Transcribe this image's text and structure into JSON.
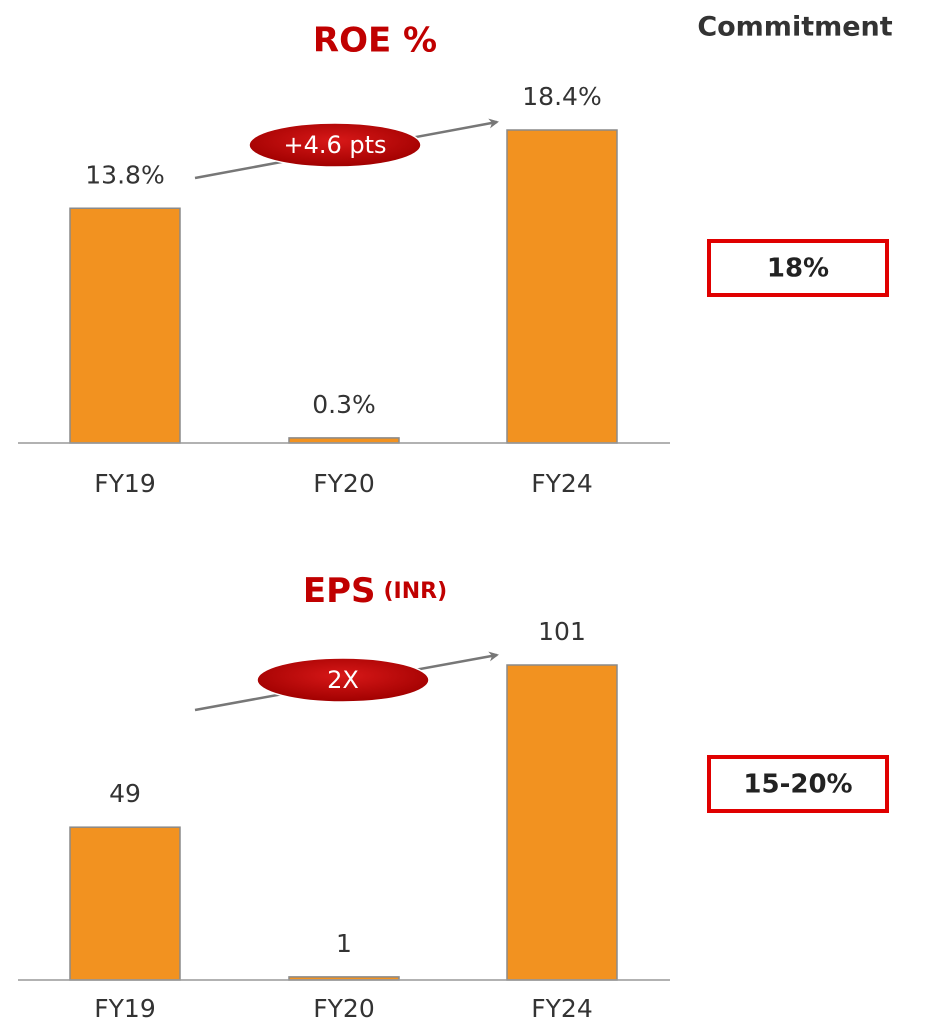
{
  "chart_data": [
    {
      "type": "bar",
      "title": "ROE %",
      "categories": [
        "FY19",
        "FY20",
        "FY24"
      ],
      "values": [
        13.8,
        0.3,
        18.4
      ],
      "value_labels": [
        "13.8%",
        "0.3%",
        "18.4%"
      ],
      "annotation": "+4.6 pts",
      "color": "#f29220"
    },
    {
      "type": "bar",
      "title": "EPS",
      "subtitle": "(INR)",
      "categories": [
        "FY19",
        "FY20",
        "FY24"
      ],
      "values": [
        49,
        1,
        101
      ],
      "annotation": "2X",
      "color": "#f29220"
    }
  ],
  "commitment": {
    "title": "Commitment",
    "values": [
      "18%",
      "15-20%"
    ]
  }
}
